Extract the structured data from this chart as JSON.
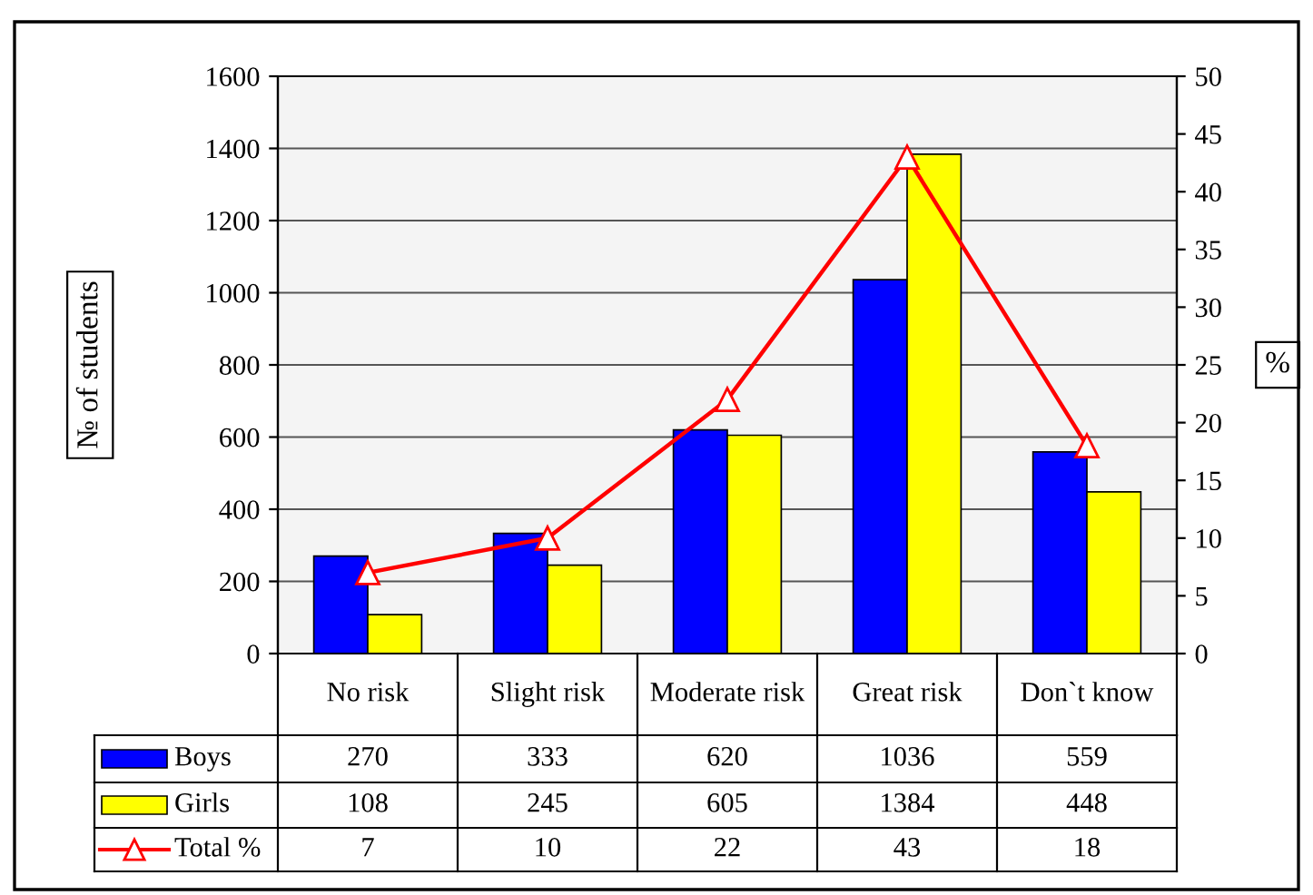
{
  "chart_data": {
    "type": "bar",
    "ylabel": "№ of students",
    "y2label": "%",
    "categories": [
      "No risk",
      "Slight risk",
      "Moderate risk",
      "Great risk",
      "Don`t know"
    ],
    "series": [
      {
        "name": "Boys",
        "color": "#0000ff",
        "values": [
          270,
          333,
          620,
          1036,
          559
        ]
      },
      {
        "name": "Girls",
        "color": "#ffff00",
        "values": [
          108,
          245,
          605,
          1384,
          448
        ]
      },
      {
        "name": "Total %",
        "type": "line",
        "axis": "y2",
        "color": "#ff0000",
        "marker": "triangle",
        "values": [
          7,
          10,
          22,
          43,
          18
        ]
      }
    ],
    "ylim": [
      0,
      1600
    ],
    "yticks": [
      0,
      200,
      400,
      600,
      800,
      1000,
      1200,
      1400,
      1600
    ],
    "y2lim": [
      0,
      50
    ],
    "y2ticks": [
      0,
      5,
      10,
      15,
      20,
      25,
      30,
      35,
      40,
      45,
      50
    ],
    "grid": "y",
    "data_labels": true,
    "legend": "bottom"
  }
}
